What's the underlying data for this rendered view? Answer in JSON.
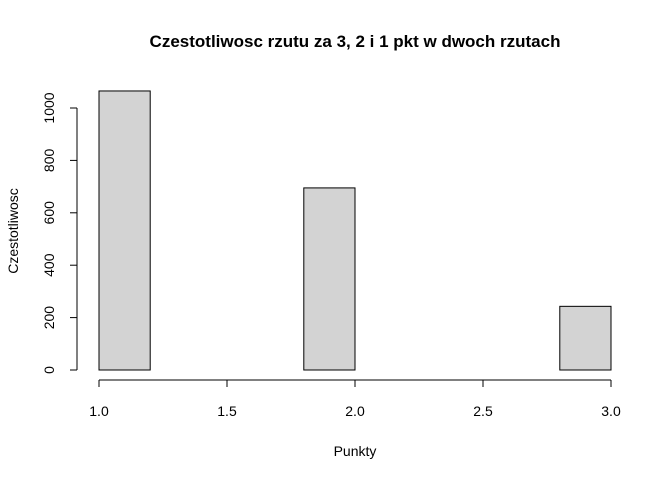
{
  "chart_data": {
    "type": "bar",
    "title": "Czestotliwosc rzutu za 3, 2 i 1 pkt w dwoch rzutach",
    "xlabel": "Punkty",
    "ylabel": "Czestotliwosc",
    "xlim": [
      1.0,
      3.0
    ],
    "ylim": [
      0,
      1000
    ],
    "x_ticks": [
      "1.0",
      "1.5",
      "2.0",
      "2.5",
      "3.0"
    ],
    "y_ticks": [
      "0",
      "200",
      "400",
      "600",
      "800",
      "1000"
    ],
    "bins": [
      {
        "x0": 1.0,
        "x1": 1.2,
        "value": 1065
      },
      {
        "x0": 1.2,
        "x1": 1.4,
        "value": 0
      },
      {
        "x0": 1.4,
        "x1": 1.6,
        "value": 0
      },
      {
        "x0": 1.6,
        "x1": 1.8,
        "value": 0
      },
      {
        "x0": 1.8,
        "x1": 2.0,
        "value": 695
      },
      {
        "x0": 2.0,
        "x1": 2.2,
        "value": 0
      },
      {
        "x0": 2.2,
        "x1": 2.4,
        "value": 0
      },
      {
        "x0": 2.4,
        "x1": 2.6,
        "value": 0
      },
      {
        "x0": 2.6,
        "x1": 2.8,
        "value": 0
      },
      {
        "x0": 2.8,
        "x1": 3.0,
        "value": 243
      }
    ],
    "bar_fill": "#d3d3d3",
    "bar_stroke": "#000000",
    "grid": false,
    "legend": "none"
  }
}
